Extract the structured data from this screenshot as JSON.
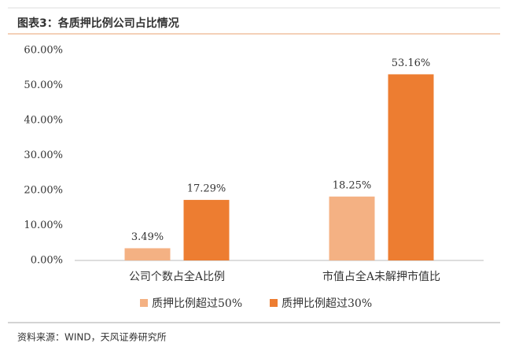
{
  "chart_data": {
    "type": "bar",
    "title": "图表3：各质押比例公司占比情况",
    "source": "资料来源：WIND，天风证券研究所",
    "categories": [
      "公司个数占全A比例",
      "市值占全A未解押市值比"
    ],
    "series": [
      {
        "name": "质押比例超过50%",
        "color": "#f4b183",
        "values": [
          3.49,
          18.25
        ],
        "value_labels": [
          "3.49%",
          "18.25%"
        ]
      },
      {
        "name": "质押比例超过30%",
        "color": "#ed7d31",
        "values": [
          17.29,
          53.16
        ],
        "value_labels": [
          "17.29%",
          "53.16%"
        ]
      }
    ],
    "ylim": [
      0,
      60
    ],
    "yticks": [
      {
        "value": 0,
        "label": "0.00%"
      },
      {
        "value": 10,
        "label": "10.00%"
      },
      {
        "value": 20,
        "label": "20.00%"
      },
      {
        "value": 30,
        "label": "30.00%"
      },
      {
        "value": 40,
        "label": "40.00%"
      },
      {
        "value": 50,
        "label": "50.00%"
      },
      {
        "value": 60,
        "label": "60.00%"
      }
    ],
    "grid": false,
    "legend": "bottom"
  }
}
